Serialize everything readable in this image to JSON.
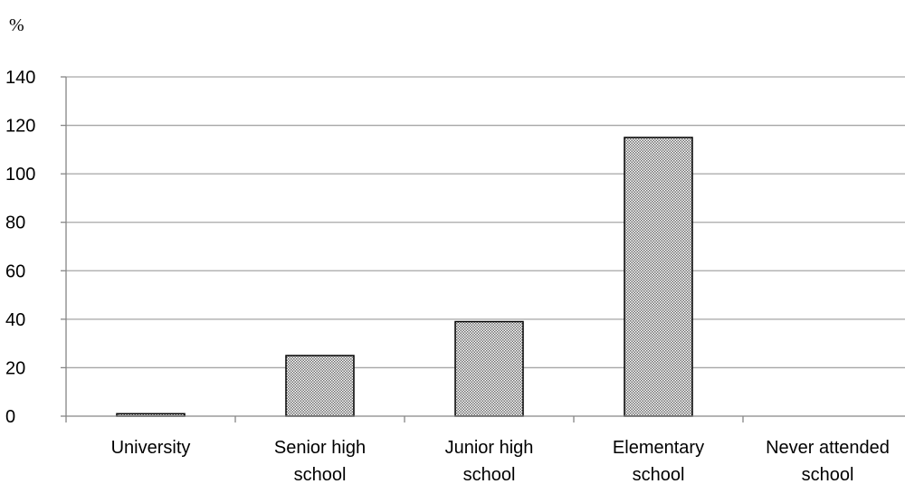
{
  "chart_data": {
    "type": "bar",
    "unit_label": "%",
    "categories": [
      [
        "University"
      ],
      [
        "Senior high",
        "school"
      ],
      [
        "Junior high",
        "school"
      ],
      [
        "Elementary",
        "school"
      ],
      [
        "Never attended",
        "school"
      ]
    ],
    "values": [
      1,
      25,
      39,
      115,
      0
    ],
    "ylim": [
      0,
      140
    ],
    "yticks": [
      0,
      20,
      40,
      60,
      80,
      100,
      120,
      140
    ],
    "grid": true,
    "bar_pattern": "dark-checkered",
    "colors": {
      "bar_fill_light": "#ffffff",
      "bar_fill_dark": "#6e6e6e",
      "bar_stroke": "#000000",
      "grid": "#a6a6a6",
      "axis": "#868686"
    }
  }
}
